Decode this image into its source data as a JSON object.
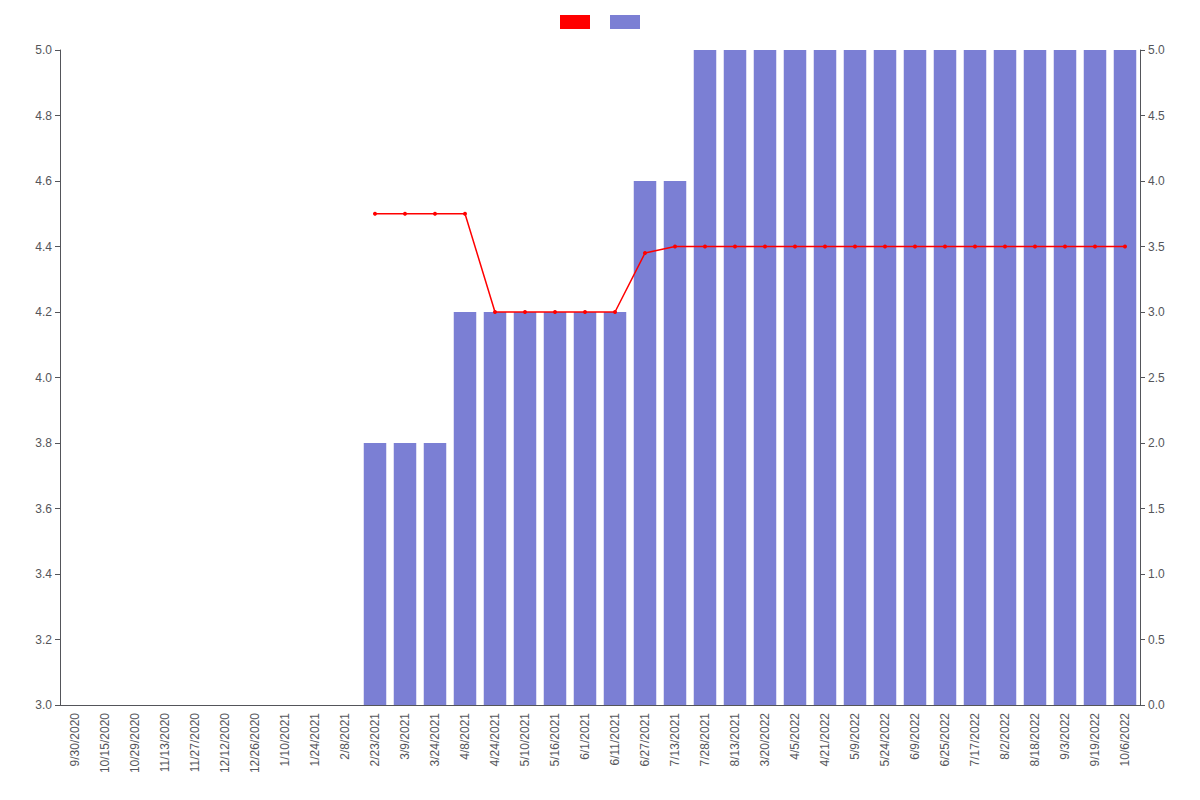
{
  "chart_data": {
    "type": "bar",
    "categories": [
      "9/30/2020",
      "10/15/2020",
      "10/29/2020",
      "11/13/2020",
      "11/27/2020",
      "12/12/2020",
      "12/26/2020",
      "1/10/2021",
      "1/24/2021",
      "2/8/2021",
      "2/23/2021",
      "3/9/2021",
      "3/24/2021",
      "4/8/2021",
      "4/24/2021",
      "5/10/2021",
      "5/16/2021",
      "6/1/2021",
      "6/11/2021",
      "6/27/2021",
      "7/13/2021",
      "7/28/2021",
      "8/13/2021",
      "3/20/2022",
      "4/5/2022",
      "4/21/2022",
      "5/9/2022",
      "5/24/2022",
      "6/9/2022",
      "6/25/2022",
      "7/17/2022",
      "8/2/2022",
      "8/18/2022",
      "9/3/2022",
      "9/19/2022",
      "10/6/2022"
    ],
    "series": [
      {
        "type": "line",
        "color": "#FF0000",
        "marker": "circle",
        "values": [
          null,
          null,
          null,
          null,
          null,
          null,
          null,
          null,
          null,
          null,
          4.5,
          4.5,
          4.5,
          4.5,
          4.2,
          4.2,
          4.2,
          4.2,
          4.2,
          4.38,
          4.4,
          4.4,
          4.4,
          4.4,
          4.4,
          4.4,
          4.4,
          4.4,
          4.4,
          4.4,
          4.4,
          4.4,
          4.4,
          4.4,
          4.4,
          4.4
        ]
      },
      {
        "type": "bar",
        "color": "#7B7FD4",
        "axis": "y2",
        "values": [
          0,
          0,
          0,
          0,
          0,
          0,
          0,
          0,
          0,
          0,
          2.0,
          2.0,
          2.0,
          3.0,
          3.0,
          3.0,
          3.0,
          3.0,
          3.0,
          4.0,
          4.0,
          5.0,
          5.0,
          5.0,
          5.0,
          5.0,
          5.0,
          5.0,
          5.0,
          5.0,
          5.0,
          5.0,
          5.0,
          5.0,
          5.0,
          5.0
        ]
      }
    ],
    "ylim": [
      3.0,
      5.0
    ],
    "yticks": [
      {
        "value": 3.0,
        "label": "3.0"
      },
      3.2,
      3.4,
      3.6,
      3.8,
      {
        "value": 4.0,
        "label": "4.0"
      },
      4.2,
      4.4,
      4.6,
      4.8,
      {
        "value": 5.0,
        "label": "5.0"
      }
    ],
    "y2lim": [
      0,
      5.0
    ],
    "y2ticks": [
      {
        "value": 0,
        "label": "0.0"
      },
      0.5,
      {
        "value": 1.0,
        "label": "1.0"
      },
      1.5,
      {
        "value": 2.0,
        "label": "2.0"
      },
      2.5,
      {
        "value": 3.0,
        "label": "3.0"
      },
      3.5,
      {
        "value": 4.0,
        "label": "4.0"
      },
      4.5,
      {
        "value": 5.0,
        "label": "5.0"
      }
    ],
    "grid": false,
    "legend": "top"
  }
}
